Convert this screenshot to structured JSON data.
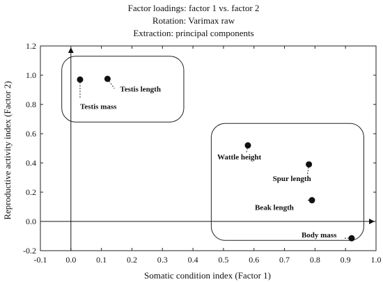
{
  "chart_data": {
    "type": "scatter",
    "title_lines": [
      "Factor loadings: factor 1 vs. factor 2",
      "Rotation: Varimax raw",
      "Extraction: principal components"
    ],
    "xlabel": "Somatic condition index (Factor 1)",
    "ylabel": "Reproductive activity index (Factor 2)",
    "xlim": [
      -0.1,
      1.0
    ],
    "ylim": [
      -0.2,
      1.2
    ],
    "x_ticks": [
      "-0.1",
      "0.0",
      "0.1",
      "0.2",
      "0.3",
      "0.4",
      "0.5",
      "0.6",
      "0.7",
      "0.8",
      "0.9",
      "1.0"
    ],
    "y_ticks": [
      "-0.2",
      "0.0",
      "0.2",
      "0.4",
      "0.6",
      "0.8",
      "1.0",
      "1.2"
    ],
    "grid": false,
    "points": [
      {
        "label": "Testis mass",
        "x": 0.03,
        "y": 0.97
      },
      {
        "label": "Testis length",
        "x": 0.12,
        "y": 0.975
      },
      {
        "label": "Wattle height",
        "x": 0.58,
        "y": 0.52
      },
      {
        "label": "Spur length",
        "x": 0.78,
        "y": 0.39
      },
      {
        "label": "Beak length",
        "x": 0.79,
        "y": 0.145
      },
      {
        "label": "Body mass",
        "x": 0.92,
        "y": -0.115
      }
    ],
    "groups": [
      {
        "name": "reproductive-group",
        "x_range": [
          -0.03,
          0.37
        ],
        "y_range": [
          0.68,
          1.13
        ]
      },
      {
        "name": "somatic-group",
        "x_range": [
          0.46,
          0.96
        ],
        "y_range": [
          -0.13,
          0.67
        ]
      }
    ]
  }
}
